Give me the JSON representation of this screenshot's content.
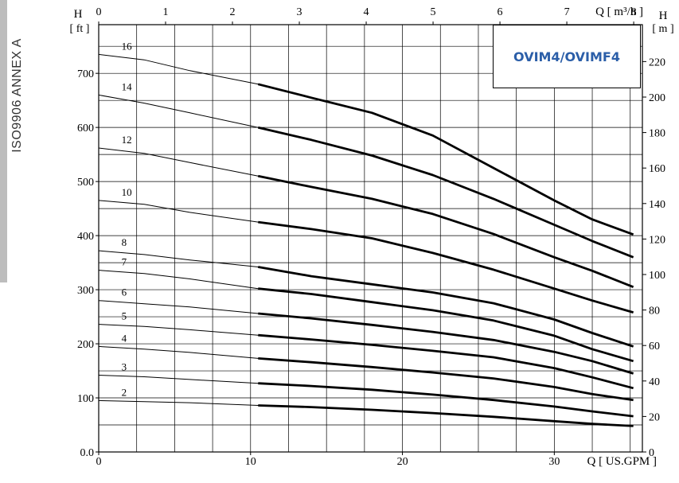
{
  "side_label": "ISO9906 ANNEX A",
  "model_title": "OVIM4/OVIMF4",
  "colors": {
    "curve": "#000000",
    "title": "#2b5ea8",
    "sidebar": "#bdbdbd"
  },
  "chart_data": {
    "type": "line",
    "title": "OVIM4/OVIMF4",
    "x_bottom": {
      "label": "Q [ US.GPM ]",
      "range": [
        0,
        35.8
      ],
      "ticks": [
        0,
        10,
        20,
        30
      ]
    },
    "x_top": {
      "label": "Q [ m³/h ]",
      "range": [
        0,
        8.13
      ],
      "ticks": [
        0,
        1,
        2,
        3,
        4,
        5,
        6,
        7,
        8
      ]
    },
    "y_left": {
      "label": "H",
      "unit": "[ ft ]",
      "range": [
        0,
        790
      ],
      "ticks": [
        0,
        100,
        200,
        300,
        400,
        500,
        600,
        700
      ],
      "tick_labels": [
        "0.0",
        "100",
        "200",
        "300",
        "400",
        "500",
        "600",
        "700"
      ]
    },
    "y_right": {
      "label": "H",
      "unit": "[ m ]",
      "range": [
        0,
        240.8
      ],
      "ticks": [
        0,
        20,
        40,
        60,
        80,
        100,
        120,
        140,
        160,
        180,
        200,
        220
      ]
    },
    "grid": true,
    "operating_range_gpm": [
      10.5,
      35.2
    ],
    "series": [
      {
        "name": "16",
        "x": [
          0,
          3,
          6,
          10.5,
          14,
          18,
          22,
          26,
          30,
          32.5,
          35.2
        ],
        "y": [
          735,
          725,
          705,
          680,
          655,
          627,
          585,
          525,
          465,
          430,
          402
        ]
      },
      {
        "name": "14",
        "x": [
          0,
          3,
          6,
          10.5,
          14,
          18,
          22,
          26,
          30,
          32.5,
          35.2
        ],
        "y": [
          660,
          645,
          627,
          600,
          577,
          548,
          512,
          468,
          420,
          390,
          360
        ]
      },
      {
        "name": "12",
        "x": [
          0,
          3,
          6,
          10.5,
          14,
          18,
          22,
          26,
          30,
          32.5,
          35.2
        ],
        "y": [
          562,
          552,
          535,
          510,
          490,
          468,
          440,
          403,
          360,
          335,
          305
        ]
      },
      {
        "name": "10",
        "x": [
          0,
          3,
          6,
          10.5,
          14,
          18,
          22,
          26,
          30,
          32.5,
          35.2
        ],
        "y": [
          465,
          458,
          443,
          425,
          412,
          395,
          368,
          337,
          302,
          280,
          258
        ]
      },
      {
        "name": "8",
        "x": [
          0,
          3,
          6,
          10.5,
          14,
          18,
          22,
          26,
          30,
          32.5,
          35.2
        ],
        "y": [
          372,
          365,
          355,
          342,
          325,
          310,
          295,
          275,
          245,
          220,
          195
        ]
      },
      {
        "name": "7",
        "x": [
          0,
          3,
          6,
          10.5,
          14,
          18,
          22,
          26,
          30,
          32.5,
          35.2
        ],
        "y": [
          336,
          330,
          320,
          302,
          292,
          277,
          262,
          243,
          215,
          190,
          168
        ]
      },
      {
        "name": "6",
        "x": [
          0,
          3,
          6,
          10.5,
          14,
          18,
          22,
          26,
          30,
          32.5,
          35.2
        ],
        "y": [
          280,
          274,
          268,
          256,
          247,
          235,
          222,
          207,
          185,
          168,
          145
        ]
      },
      {
        "name": "5",
        "x": [
          0,
          3,
          6,
          10.5,
          14,
          18,
          22,
          26,
          30,
          32.5,
          35.2
        ],
        "y": [
          236,
          232,
          226,
          216,
          208,
          198,
          187,
          175,
          155,
          138,
          118
        ]
      },
      {
        "name": "4",
        "x": [
          0,
          3,
          6,
          10.5,
          14,
          18,
          22,
          26,
          30,
          32.5,
          35.2
        ],
        "y": [
          195,
          190,
          184,
          173,
          166,
          157,
          147,
          136,
          120,
          107,
          96
        ]
      },
      {
        "name": "3",
        "x": [
          0,
          3,
          6,
          10.5,
          14,
          18,
          22,
          26,
          30,
          32.5,
          35.2
        ],
        "y": [
          142,
          139,
          134,
          127,
          122,
          115,
          106,
          96,
          84,
          75,
          66
        ]
      },
      {
        "name": "2",
        "x": [
          0,
          3,
          6,
          10.5,
          14,
          18,
          22,
          26,
          30,
          32.5,
          35.2
        ],
        "y": [
          95,
          93,
          91,
          86,
          83,
          78,
          72,
          65,
          57,
          52,
          48
        ]
      }
    ]
  }
}
